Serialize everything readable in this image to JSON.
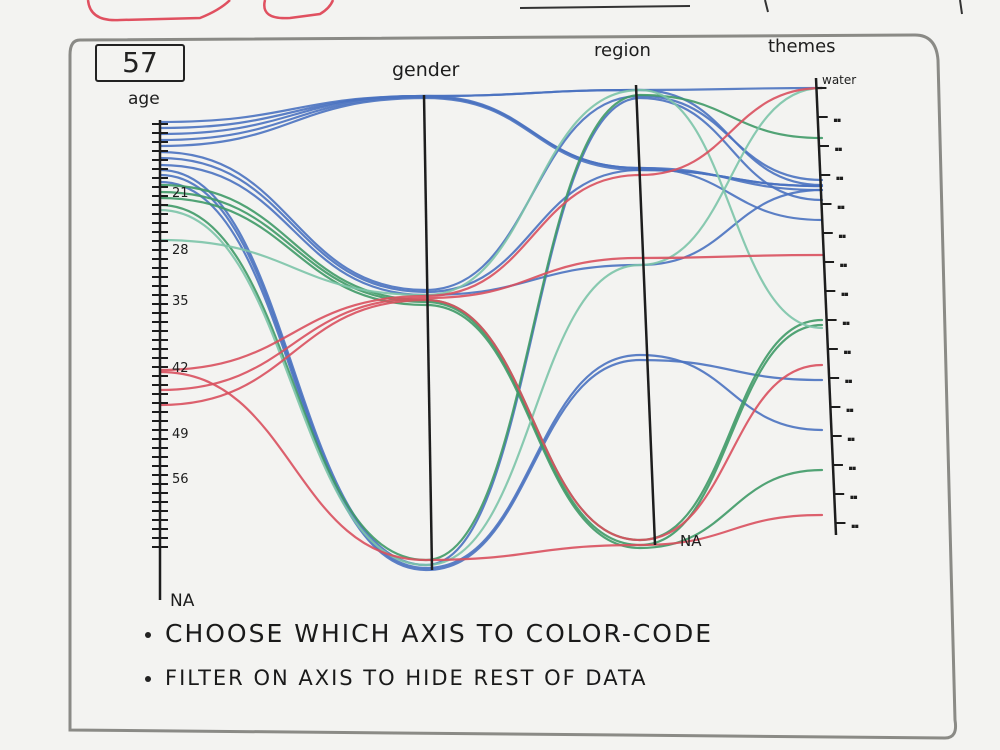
{
  "count_badge": "57",
  "axes": {
    "age": "age",
    "gender": "gender",
    "region": "region",
    "themes": "themes"
  },
  "age_ticks": [
    "21",
    "28",
    "35",
    "42",
    "49",
    "56",
    "NA"
  ],
  "themes_top_label": "water",
  "na_label": "NA",
  "notes": [
    "CHOOSE WHICH AXIS TO COLOR-CODE",
    "FILTER ON AXIS TO HIDE REST OF DATA"
  ],
  "colors": {
    "blue": "#4a72c0",
    "green": "#3f9a67",
    "teal": "#7cc4a8",
    "red": "#d9505e",
    "ink": "#1d1d1d",
    "frame": "#8a8a86",
    "marker_red": "#e05060"
  }
}
